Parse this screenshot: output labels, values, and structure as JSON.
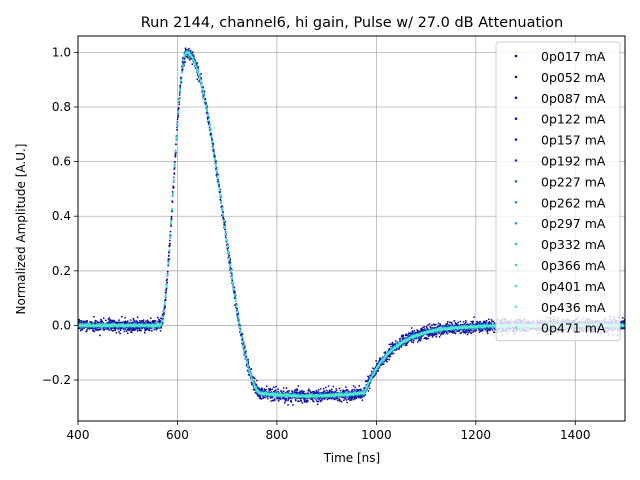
{
  "chart_data": {
    "type": "scatter",
    "title": "Run 2144, channel6, hi gain, Pulse w/ 27.0 dB Attenuation",
    "xlabel": "Time [ns]",
    "ylabel": "Normalized Amplitude [A.U.]",
    "xlim": [
      400,
      1500
    ],
    "ylim": [
      -0.35,
      1.06
    ],
    "xticks": [
      400,
      600,
      800,
      1000,
      1200,
      1400
    ],
    "yticks": [
      -0.2,
      0.0,
      0.2,
      0.4,
      0.6,
      0.8,
      1.0
    ],
    "xtick_labels": [
      "400",
      "600",
      "800",
      "1000",
      "1200",
      "1400"
    ],
    "ytick_labels": [
      "−0.2",
      "0.0",
      "0.2",
      "0.4",
      "0.6",
      "0.8",
      "1.0"
    ],
    "grid": true,
    "legend_position": "top-right",
    "waveform_shape": {
      "baseline": 0.0,
      "rise_start_ns": 565,
      "peak_ns": 618,
      "peak_value": 1.0,
      "undershoot_value": -0.25,
      "undershoot_start_ns": 770,
      "recovery_start_ns": 975,
      "settled_ns": 1200
    },
    "series": [
      {
        "name": "0p017 mA",
        "color": "#0a0a8c",
        "noise": 0.02
      },
      {
        "name": "0p052 mA",
        "color": "#0d0d96",
        "noise": 0.017
      },
      {
        "name": "0p087 mA",
        "color": "#1010a0",
        "noise": 0.014
      },
      {
        "name": "0p122 mA",
        "color": "#1616aa",
        "noise": 0.012
      },
      {
        "name": "0p157 mA",
        "color": "#1c1cb8",
        "noise": 0.01
      },
      {
        "name": "0p192 mA",
        "color": "#1e3cc0",
        "noise": 0.008
      },
      {
        "name": "0p227 mA",
        "color": "#2060c8",
        "noise": 0.007
      },
      {
        "name": "0p262 mA",
        "color": "#2488d0",
        "noise": 0.006
      },
      {
        "name": "0p297 mA",
        "color": "#2aa8d4",
        "noise": 0.005
      },
      {
        "name": "0p332 mA",
        "color": "#30c0d8",
        "noise": 0.004
      },
      {
        "name": "0p366 mA",
        "color": "#38d0d6",
        "noise": 0.004
      },
      {
        "name": "0p401 mA",
        "color": "#40dcd0",
        "noise": 0.003
      },
      {
        "name": "0p436 mA",
        "color": "#48e4cc",
        "noise": 0.003
      },
      {
        "name": "0p471 mA",
        "color": "#50ecc4",
        "noise": 0.003
      }
    ]
  }
}
